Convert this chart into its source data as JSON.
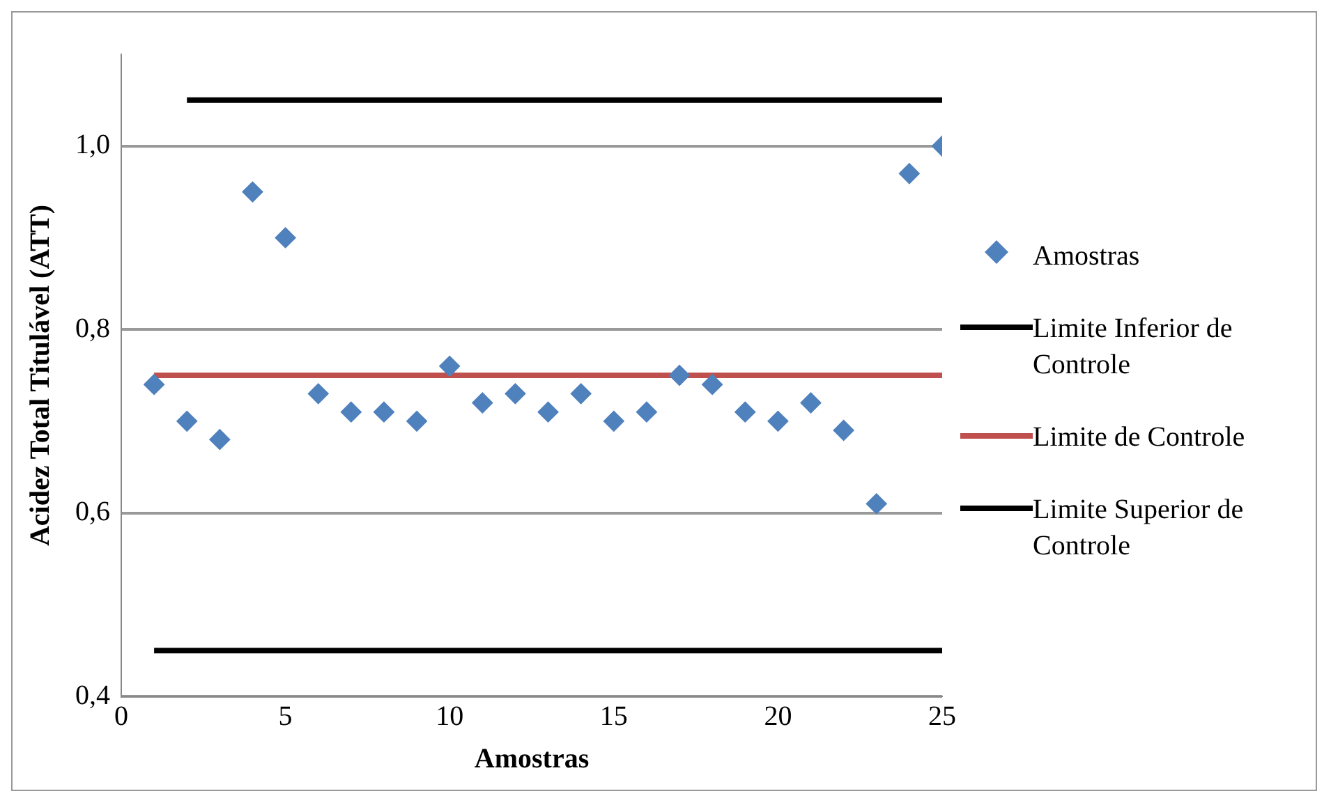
{
  "chart_data": {
    "type": "scatter",
    "xlabel": "Amostras",
    "ylabel": "Acidez Total Titulável (ATT)",
    "x": [
      1,
      2,
      3,
      4,
      5,
      6,
      7,
      8,
      9,
      10,
      11,
      12,
      13,
      14,
      15,
      16,
      17,
      18,
      19,
      20,
      21,
      22,
      23,
      24,
      25
    ],
    "series": [
      {
        "name": "Amostras",
        "type": "scatter",
        "color": "#4f81bd",
        "marker": "diamond",
        "values": [
          0.74,
          0.7,
          0.68,
          0.95,
          0.9,
          0.73,
          0.71,
          0.71,
          0.7,
          0.76,
          0.72,
          0.73,
          0.71,
          0.73,
          0.7,
          0.71,
          0.75,
          0.74,
          0.71,
          0.7,
          0.72,
          0.69,
          0.61,
          0.97,
          1.0
        ]
      },
      {
        "name": "Limite Inferior de Controle",
        "type": "line",
        "color": "#000000",
        "marker": "none",
        "x": [
          2,
          25
        ],
        "values": [
          1.05,
          1.05
        ]
      },
      {
        "name": "Limite de Controle",
        "type": "line",
        "color": "#c0504d",
        "marker": "none",
        "x": [
          1,
          25
        ],
        "values": [
          0.75,
          0.75
        ]
      },
      {
        "name": "Limite Superior de Controle",
        "type": "line",
        "color": "#000000",
        "marker": "none",
        "x": [
          1,
          25
        ],
        "values": [
          0.45,
          0.45
        ]
      }
    ],
    "xlim": [
      0,
      25
    ],
    "xticks": [
      0,
      5,
      10,
      15,
      20,
      25
    ],
    "ylim": [
      0.4,
      1.1
    ],
    "yticks": [
      {
        "value": 0.4,
        "label": "0,4"
      },
      {
        "value": 0.6,
        "label": "0,6"
      },
      {
        "value": 0.8,
        "label": "0,8"
      },
      {
        "value": 1.0,
        "label": "1,0"
      }
    ],
    "grid": "y",
    "legend": "right"
  }
}
